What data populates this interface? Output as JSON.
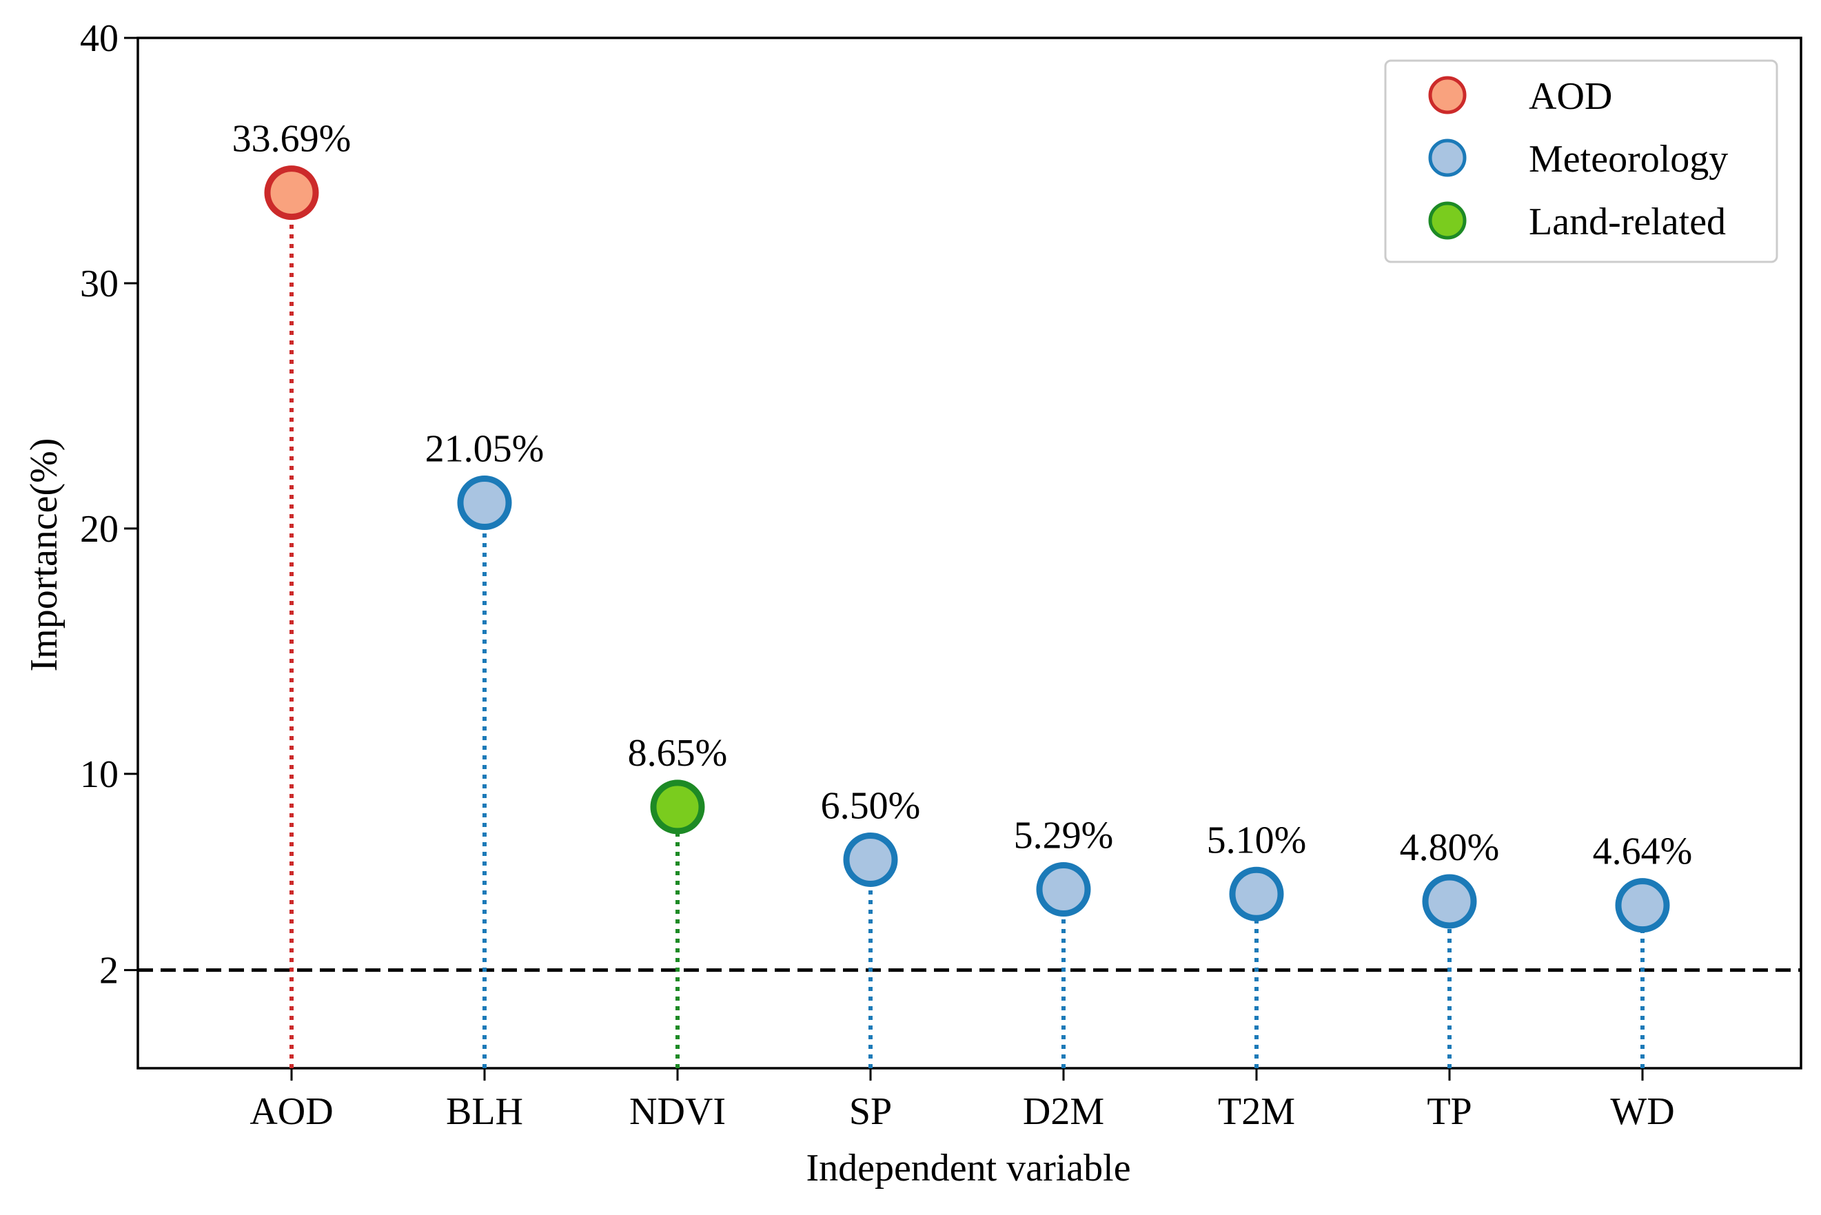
{
  "chart_data": {
    "type": "scatter",
    "title": "",
    "xlabel": "Independent variable",
    "ylabel": "Importance(%)",
    "ylim": [
      -2,
      40
    ],
    "yticks": [
      2,
      10,
      20,
      30,
      40
    ],
    "grid": false,
    "legend_position": "top-right",
    "categories": [
      "AOD",
      "BLH",
      "NDVI",
      "SP",
      "D2M",
      "T2M",
      "TP",
      "WD"
    ],
    "values": [
      33.69,
      21.05,
      8.65,
      6.5,
      5.29,
      5.1,
      4.8,
      4.64
    ],
    "value_labels": [
      "33.69%",
      "21.05%",
      "8.65%",
      "6.50%",
      "5.29%",
      "5.10%",
      "4.80%",
      "4.64%"
    ],
    "groups": [
      "AOD",
      "Meteorology",
      "Land-related",
      "Meteorology",
      "Meteorology",
      "Meteorology",
      "Meteorology",
      "Meteorology"
    ],
    "threshold": 2,
    "legend": [
      {
        "name": "AOD",
        "fill": "#f9a27e",
        "stroke": "#cc2a2a"
      },
      {
        "name": "Meteorology",
        "fill": "#a9c4e1",
        "stroke": "#1b7ab8"
      },
      {
        "name": "Land-related",
        "fill": "#7acc1e",
        "stroke": "#1d8a25"
      }
    ]
  }
}
